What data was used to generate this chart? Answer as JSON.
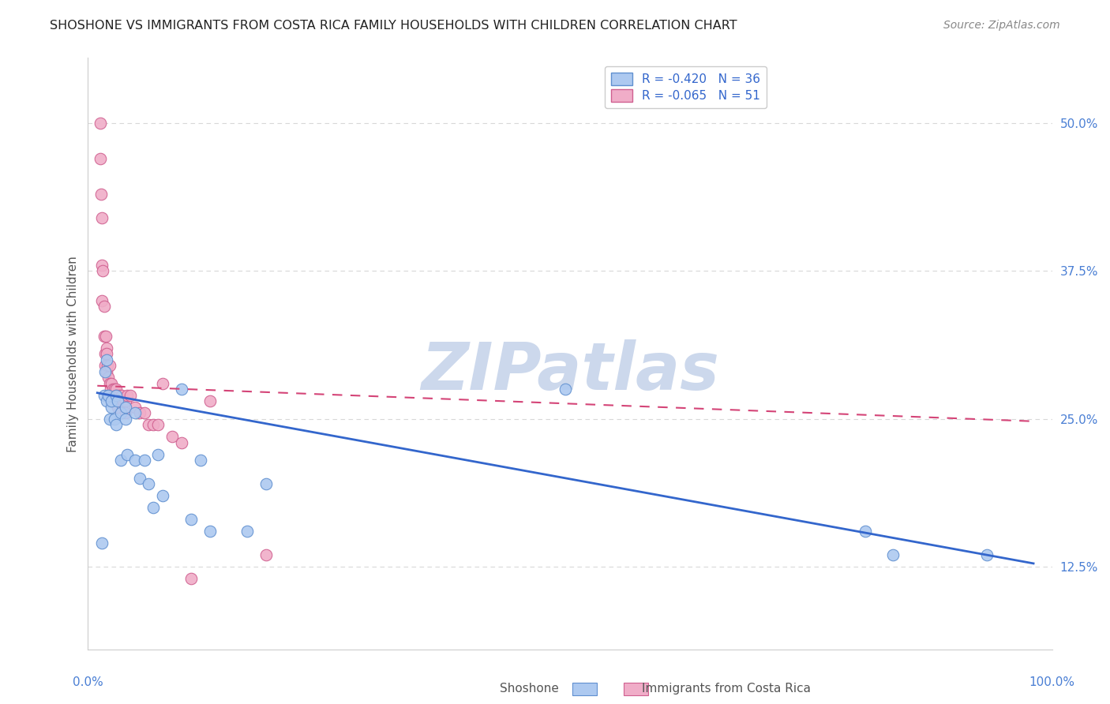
{
  "title": "SHOSHONE VS IMMIGRANTS FROM COSTA RICA FAMILY HOUSEHOLDS WITH CHILDREN CORRELATION CHART",
  "source": "Source: ZipAtlas.com",
  "ylabel": "Family Households with Children",
  "yticks": [
    0.125,
    0.25,
    0.375,
    0.5
  ],
  "ytick_labels": [
    "12.5%",
    "25.0%",
    "37.5%",
    "50.0%"
  ],
  "legend_label_blue": "R = -0.420   N = 36",
  "legend_label_pink": "R = -0.065   N = 51",
  "watermark": "ZIPatlas",
  "shoshone_color": "#adc9f0",
  "costa_rica_color": "#f0adc8",
  "shoshone_color_dark": "#6090d0",
  "costa_rica_color_dark": "#d06090",
  "shoshone_scatter_x": [
    0.005,
    0.007,
    0.008,
    0.01,
    0.01,
    0.012,
    0.013,
    0.015,
    0.015,
    0.018,
    0.02,
    0.02,
    0.022,
    0.025,
    0.025,
    0.03,
    0.03,
    0.032,
    0.04,
    0.04,
    0.045,
    0.05,
    0.055,
    0.06,
    0.065,
    0.07,
    0.09,
    0.1,
    0.11,
    0.12,
    0.16,
    0.18,
    0.5,
    0.82,
    0.85,
    0.95
  ],
  "shoshone_scatter_y": [
    0.145,
    0.27,
    0.29,
    0.3,
    0.265,
    0.27,
    0.25,
    0.26,
    0.265,
    0.25,
    0.27,
    0.245,
    0.265,
    0.255,
    0.215,
    0.26,
    0.25,
    0.22,
    0.255,
    0.215,
    0.2,
    0.215,
    0.195,
    0.175,
    0.22,
    0.185,
    0.275,
    0.165,
    0.215,
    0.155,
    0.155,
    0.195,
    0.275,
    0.155,
    0.135,
    0.135
  ],
  "costa_rica_scatter_x": [
    0.003,
    0.003,
    0.004,
    0.005,
    0.005,
    0.005,
    0.006,
    0.007,
    0.007,
    0.008,
    0.008,
    0.009,
    0.01,
    0.01,
    0.01,
    0.011,
    0.012,
    0.012,
    0.013,
    0.013,
    0.014,
    0.015,
    0.015,
    0.016,
    0.017,
    0.018,
    0.019,
    0.02,
    0.02,
    0.021,
    0.022,
    0.023,
    0.025,
    0.026,
    0.028,
    0.03,
    0.03,
    0.032,
    0.035,
    0.04,
    0.045,
    0.05,
    0.055,
    0.06,
    0.065,
    0.07,
    0.08,
    0.09,
    0.1,
    0.12,
    0.18
  ],
  "costa_rica_scatter_y": [
    0.5,
    0.47,
    0.44,
    0.42,
    0.38,
    0.35,
    0.375,
    0.345,
    0.32,
    0.305,
    0.295,
    0.32,
    0.31,
    0.305,
    0.29,
    0.295,
    0.285,
    0.27,
    0.28,
    0.295,
    0.275,
    0.28,
    0.265,
    0.265,
    0.275,
    0.275,
    0.265,
    0.275,
    0.27,
    0.265,
    0.26,
    0.27,
    0.265,
    0.27,
    0.265,
    0.265,
    0.255,
    0.27,
    0.27,
    0.26,
    0.255,
    0.255,
    0.245,
    0.245,
    0.245,
    0.28,
    0.235,
    0.23,
    0.115,
    0.265,
    0.135
  ],
  "shoshone_trend_x": [
    0.0,
    1.0
  ],
  "shoshone_trend_y": [
    0.272,
    0.128
  ],
  "costa_rica_trend_x": [
    0.0,
    1.0
  ],
  "costa_rica_trend_y": [
    0.278,
    0.248
  ],
  "xlim": [
    -0.01,
    1.02
  ],
  "ylim": [
    0.055,
    0.555
  ],
  "background_color": "#ffffff",
  "grid_color": "#d8d8d8",
  "title_fontsize": 11.5,
  "source_fontsize": 10,
  "ylabel_fontsize": 11,
  "tick_label_fontsize": 11,
  "tick_color": "#4a7fd4",
  "watermark_color": "#ccd8ec",
  "watermark_fontsize": 60,
  "scatter_size": 110,
  "shoshone_line_color": "#3366cc",
  "costa_rica_line_color": "#d44477"
}
